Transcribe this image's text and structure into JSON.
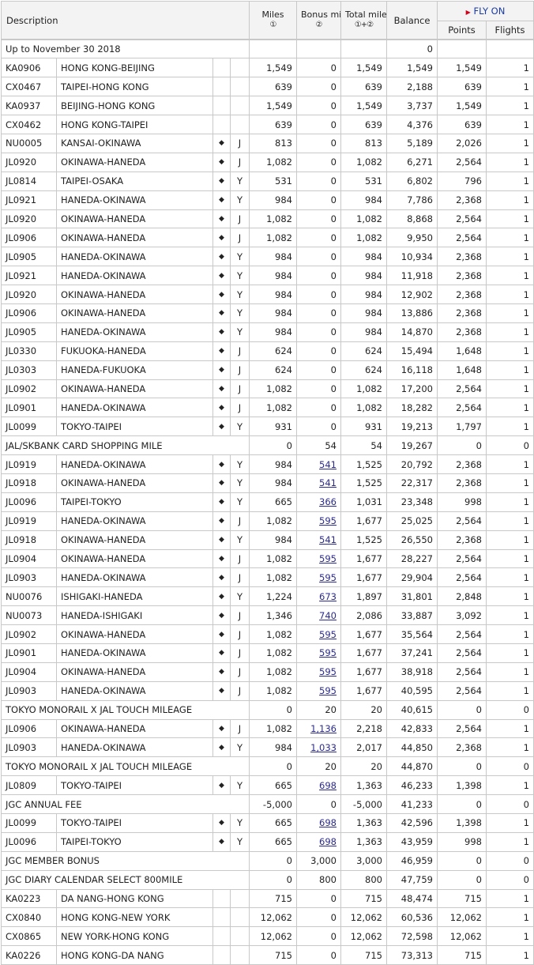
{
  "headers": {
    "description": "Description",
    "miles": "Miles",
    "miles_sub": "①",
    "bonus": "Bonus miles",
    "bonus_sub": "②",
    "total": "Total miles",
    "total_sub": "①+②",
    "balance": "Balance",
    "flyon": "FLY ON",
    "points": "Points",
    "flights": "Flights"
  },
  "opening": {
    "label": "Up to November 30 2018",
    "balance": "0"
  },
  "rows": [
    {
      "type": "flight",
      "code": "KA0906",
      "route": "HONG KONG-BEIJING",
      "mark": "",
      "cls": "",
      "miles": "1,549",
      "bonus": "0",
      "link": false,
      "total": "1,549",
      "balance": "1,549",
      "points": "1,549",
      "flights": "1"
    },
    {
      "type": "flight",
      "code": "CX0467",
      "route": "TAIPEI-HONG KONG",
      "mark": "",
      "cls": "",
      "miles": "639",
      "bonus": "0",
      "link": false,
      "total": "639",
      "balance": "2,188",
      "points": "639",
      "flights": "1"
    },
    {
      "type": "flight",
      "code": "KA0937",
      "route": "BEIJING-HONG KONG",
      "mark": "",
      "cls": "",
      "miles": "1,549",
      "bonus": "0",
      "link": false,
      "total": "1,549",
      "balance": "3,737",
      "points": "1,549",
      "flights": "1"
    },
    {
      "type": "flight",
      "code": "CX0462",
      "route": "HONG KONG-TAIPEI",
      "mark": "",
      "cls": "",
      "miles": "639",
      "bonus": "0",
      "link": false,
      "total": "639",
      "balance": "4,376",
      "points": "639",
      "flights": "1"
    },
    {
      "type": "flight",
      "code": "NU0005",
      "route": "KANSAI-OKINAWA",
      "mark": "◆",
      "cls": "J",
      "miles": "813",
      "bonus": "0",
      "link": false,
      "total": "813",
      "balance": "5,189",
      "points": "2,026",
      "flights": "1"
    },
    {
      "type": "flight",
      "code": "JL0920",
      "route": "OKINAWA-HANEDA",
      "mark": "◆",
      "cls": "J",
      "miles": "1,082",
      "bonus": "0",
      "link": false,
      "total": "1,082",
      "balance": "6,271",
      "points": "2,564",
      "flights": "1"
    },
    {
      "type": "flight",
      "code": "JL0814",
      "route": "TAIPEI-OSAKA",
      "mark": "◆",
      "cls": "Y",
      "miles": "531",
      "bonus": "0",
      "link": false,
      "total": "531",
      "balance": "6,802",
      "points": "796",
      "flights": "1"
    },
    {
      "type": "flight",
      "code": "JL0921",
      "route": "HANEDA-OKINAWA",
      "mark": "◆",
      "cls": "Y",
      "miles": "984",
      "bonus": "0",
      "link": false,
      "total": "984",
      "balance": "7,786",
      "points": "2,368",
      "flights": "1"
    },
    {
      "type": "flight",
      "code": "JL0920",
      "route": "OKINAWA-HANEDA",
      "mark": "◆",
      "cls": "J",
      "miles": "1,082",
      "bonus": "0",
      "link": false,
      "total": "1,082",
      "balance": "8,868",
      "points": "2,564",
      "flights": "1"
    },
    {
      "type": "flight",
      "code": "JL0906",
      "route": "OKINAWA-HANEDA",
      "mark": "◆",
      "cls": "J",
      "miles": "1,082",
      "bonus": "0",
      "link": false,
      "total": "1,082",
      "balance": "9,950",
      "points": "2,564",
      "flights": "1"
    },
    {
      "type": "flight",
      "code": "JL0905",
      "route": "HANEDA-OKINAWA",
      "mark": "◆",
      "cls": "Y",
      "miles": "984",
      "bonus": "0",
      "link": false,
      "total": "984",
      "balance": "10,934",
      "points": "2,368",
      "flights": "1"
    },
    {
      "type": "flight",
      "code": "JL0921",
      "route": "HANEDA-OKINAWA",
      "mark": "◆",
      "cls": "Y",
      "miles": "984",
      "bonus": "0",
      "link": false,
      "total": "984",
      "balance": "11,918",
      "points": "2,368",
      "flights": "1"
    },
    {
      "type": "flight",
      "code": "JL0920",
      "route": "OKINAWA-HANEDA",
      "mark": "◆",
      "cls": "Y",
      "miles": "984",
      "bonus": "0",
      "link": false,
      "total": "984",
      "balance": "12,902",
      "points": "2,368",
      "flights": "1"
    },
    {
      "type": "flight",
      "code": "JL0906",
      "route": "OKINAWA-HANEDA",
      "mark": "◆",
      "cls": "Y",
      "miles": "984",
      "bonus": "0",
      "link": false,
      "total": "984",
      "balance": "13,886",
      "points": "2,368",
      "flights": "1"
    },
    {
      "type": "flight",
      "code": "JL0905",
      "route": "HANEDA-OKINAWA",
      "mark": "◆",
      "cls": "Y",
      "miles": "984",
      "bonus": "0",
      "link": false,
      "total": "984",
      "balance": "14,870",
      "points": "2,368",
      "flights": "1"
    },
    {
      "type": "flight",
      "code": "JL0330",
      "route": "FUKUOKA-HANEDA",
      "mark": "◆",
      "cls": "J",
      "miles": "624",
      "bonus": "0",
      "link": false,
      "total": "624",
      "balance": "15,494",
      "points": "1,648",
      "flights": "1"
    },
    {
      "type": "flight",
      "code": "JL0303",
      "route": "HANEDA-FUKUOKA",
      "mark": "◆",
      "cls": "J",
      "miles": "624",
      "bonus": "0",
      "link": false,
      "total": "624",
      "balance": "16,118",
      "points": "1,648",
      "flights": "1"
    },
    {
      "type": "flight",
      "code": "JL0902",
      "route": "OKINAWA-HANEDA",
      "mark": "◆",
      "cls": "J",
      "miles": "1,082",
      "bonus": "0",
      "link": false,
      "total": "1,082",
      "balance": "17,200",
      "points": "2,564",
      "flights": "1"
    },
    {
      "type": "flight",
      "code": "JL0901",
      "route": "HANEDA-OKINAWA",
      "mark": "◆",
      "cls": "J",
      "miles": "1,082",
      "bonus": "0",
      "link": false,
      "total": "1,082",
      "balance": "18,282",
      "points": "2,564",
      "flights": "1"
    },
    {
      "type": "flight",
      "code": "JL0099",
      "route": "TOKYO-TAIPEI",
      "mark": "◆",
      "cls": "Y",
      "miles": "931",
      "bonus": "0",
      "link": false,
      "total": "931",
      "balance": "19,213",
      "points": "1,797",
      "flights": "1"
    },
    {
      "type": "other",
      "label": "JAL/SKBANK CARD SHOPPING MILE",
      "miles": "0",
      "bonus": "54",
      "link": false,
      "total": "54",
      "balance": "19,267",
      "points": "0",
      "flights": "0"
    },
    {
      "type": "flight",
      "code": "JL0919",
      "route": "HANEDA-OKINAWA",
      "mark": "◆",
      "cls": "Y",
      "miles": "984",
      "bonus": "541",
      "link": true,
      "total": "1,525",
      "balance": "20,792",
      "points": "2,368",
      "flights": "1"
    },
    {
      "type": "flight",
      "code": "JL0918",
      "route": "OKINAWA-HANEDA",
      "mark": "◆",
      "cls": "Y",
      "miles": "984",
      "bonus": "541",
      "link": true,
      "total": "1,525",
      "balance": "22,317",
      "points": "2,368",
      "flights": "1"
    },
    {
      "type": "flight",
      "code": "JL0096",
      "route": "TAIPEI-TOKYO",
      "mark": "◆",
      "cls": "Y",
      "miles": "665",
      "bonus": "366",
      "link": true,
      "total": "1,031",
      "balance": "23,348",
      "points": "998",
      "flights": "1"
    },
    {
      "type": "flight",
      "code": "JL0919",
      "route": "HANEDA-OKINAWA",
      "mark": "◆",
      "cls": "J",
      "miles": "1,082",
      "bonus": "595",
      "link": true,
      "total": "1,677",
      "balance": "25,025",
      "points": "2,564",
      "flights": "1"
    },
    {
      "type": "flight",
      "code": "JL0918",
      "route": "OKINAWA-HANEDA",
      "mark": "◆",
      "cls": "Y",
      "miles": "984",
      "bonus": "541",
      "link": true,
      "total": "1,525",
      "balance": "26,550",
      "points": "2,368",
      "flights": "1"
    },
    {
      "type": "flight",
      "code": "JL0904",
      "route": "OKINAWA-HANEDA",
      "mark": "◆",
      "cls": "J",
      "miles": "1,082",
      "bonus": "595",
      "link": true,
      "total": "1,677",
      "balance": "28,227",
      "points": "2,564",
      "flights": "1"
    },
    {
      "type": "flight",
      "code": "JL0903",
      "route": "HANEDA-OKINAWA",
      "mark": "◆",
      "cls": "J",
      "miles": "1,082",
      "bonus": "595",
      "link": true,
      "total": "1,677",
      "balance": "29,904",
      "points": "2,564",
      "flights": "1"
    },
    {
      "type": "flight",
      "code": "NU0076",
      "route": "ISHIGAKI-HANEDA",
      "mark": "◆",
      "cls": "Y",
      "miles": "1,224",
      "bonus": "673",
      "link": true,
      "total": "1,897",
      "balance": "31,801",
      "points": "2,848",
      "flights": "1"
    },
    {
      "type": "flight",
      "code": "NU0073",
      "route": "HANEDA-ISHIGAKI",
      "mark": "◆",
      "cls": "J",
      "miles": "1,346",
      "bonus": "740",
      "link": true,
      "total": "2,086",
      "balance": "33,887",
      "points": "3,092",
      "flights": "1"
    },
    {
      "type": "flight",
      "code": "JL0902",
      "route": "OKINAWA-HANEDA",
      "mark": "◆",
      "cls": "J",
      "miles": "1,082",
      "bonus": "595",
      "link": true,
      "total": "1,677",
      "balance": "35,564",
      "points": "2,564",
      "flights": "1"
    },
    {
      "type": "flight",
      "code": "JL0901",
      "route": "HANEDA-OKINAWA",
      "mark": "◆",
      "cls": "J",
      "miles": "1,082",
      "bonus": "595",
      "link": true,
      "total": "1,677",
      "balance": "37,241",
      "points": "2,564",
      "flights": "1"
    },
    {
      "type": "flight",
      "code": "JL0904",
      "route": "OKINAWA-HANEDA",
      "mark": "◆",
      "cls": "J",
      "miles": "1,082",
      "bonus": "595",
      "link": true,
      "total": "1,677",
      "balance": "38,918",
      "points": "2,564",
      "flights": "1"
    },
    {
      "type": "flight",
      "code": "JL0903",
      "route": "HANEDA-OKINAWA",
      "mark": "◆",
      "cls": "J",
      "miles": "1,082",
      "bonus": "595",
      "link": true,
      "total": "1,677",
      "balance": "40,595",
      "points": "2,564",
      "flights": "1"
    },
    {
      "type": "other",
      "label": "TOKYO MONORAIL X JAL TOUCH MILEAGE",
      "miles": "0",
      "bonus": "20",
      "link": false,
      "total": "20",
      "balance": "40,615",
      "points": "0",
      "flights": "0"
    },
    {
      "type": "flight",
      "code": "JL0906",
      "route": "OKINAWA-HANEDA",
      "mark": "◆",
      "cls": "J",
      "miles": "1,082",
      "bonus": "1,136",
      "link": true,
      "total": "2,218",
      "balance": "42,833",
      "points": "2,564",
      "flights": "1"
    },
    {
      "type": "flight",
      "code": "JL0903",
      "route": "HANEDA-OKINAWA",
      "mark": "◆",
      "cls": "Y",
      "miles": "984",
      "bonus": "1,033",
      "link": true,
      "total": "2,017",
      "balance": "44,850",
      "points": "2,368",
      "flights": "1"
    },
    {
      "type": "other",
      "label": "TOKYO MONORAIL X JAL TOUCH MILEAGE",
      "miles": "0",
      "bonus": "20",
      "link": false,
      "total": "20",
      "balance": "44,870",
      "points": "0",
      "flights": "0"
    },
    {
      "type": "flight",
      "code": "JL0809",
      "route": "TOKYO-TAIPEI",
      "mark": "◆",
      "cls": "Y",
      "miles": "665",
      "bonus": "698",
      "link": true,
      "total": "1,363",
      "balance": "46,233",
      "points": "1,398",
      "flights": "1"
    },
    {
      "type": "other",
      "label": "JGC ANNUAL FEE",
      "miles": "-5,000",
      "bonus": "0",
      "link": false,
      "total": "-5,000",
      "balance": "41,233",
      "points": "0",
      "flights": "0"
    },
    {
      "type": "flight",
      "code": "JL0099",
      "route": "TOKYO-TAIPEI",
      "mark": "◆",
      "cls": "Y",
      "miles": "665",
      "bonus": "698",
      "link": true,
      "total": "1,363",
      "balance": "42,596",
      "points": "1,398",
      "flights": "1"
    },
    {
      "type": "flight",
      "code": "JL0096",
      "route": "TAIPEI-TOKYO",
      "mark": "◆",
      "cls": "Y",
      "miles": "665",
      "bonus": "698",
      "link": true,
      "total": "1,363",
      "balance": "43,959",
      "points": "998",
      "flights": "1"
    },
    {
      "type": "other",
      "label": "JGC MEMBER BONUS",
      "miles": "0",
      "bonus": "3,000",
      "link": false,
      "total": "3,000",
      "balance": "46,959",
      "points": "0",
      "flights": "0"
    },
    {
      "type": "other",
      "label": "JGC DIARY CALENDAR SELECT 800MILE",
      "miles": "0",
      "bonus": "800",
      "link": false,
      "total": "800",
      "balance": "47,759",
      "points": "0",
      "flights": "0"
    },
    {
      "type": "flight",
      "code": "KA0223",
      "route": "DA NANG-HONG KONG",
      "mark": "",
      "cls": "",
      "miles": "715",
      "bonus": "0",
      "link": false,
      "total": "715",
      "balance": "48,474",
      "points": "715",
      "flights": "1"
    },
    {
      "type": "flight",
      "code": "CX0840",
      "route": "HONG KONG-NEW YORK",
      "mark": "",
      "cls": "",
      "miles": "12,062",
      "bonus": "0",
      "link": false,
      "total": "12,062",
      "balance": "60,536",
      "points": "12,062",
      "flights": "1"
    },
    {
      "type": "flight",
      "code": "CX0865",
      "route": "NEW YORK-HONG KONG",
      "mark": "",
      "cls": "",
      "miles": "12,062",
      "bonus": "0",
      "link": false,
      "total": "12,062",
      "balance": "72,598",
      "points": "12,062",
      "flights": "1"
    },
    {
      "type": "flight",
      "code": "KA0226",
      "route": "HONG KONG-DA NANG",
      "mark": "",
      "cls": "",
      "miles": "715",
      "bonus": "0",
      "link": false,
      "total": "715",
      "balance": "73,313",
      "points": "715",
      "flights": "1"
    }
  ]
}
